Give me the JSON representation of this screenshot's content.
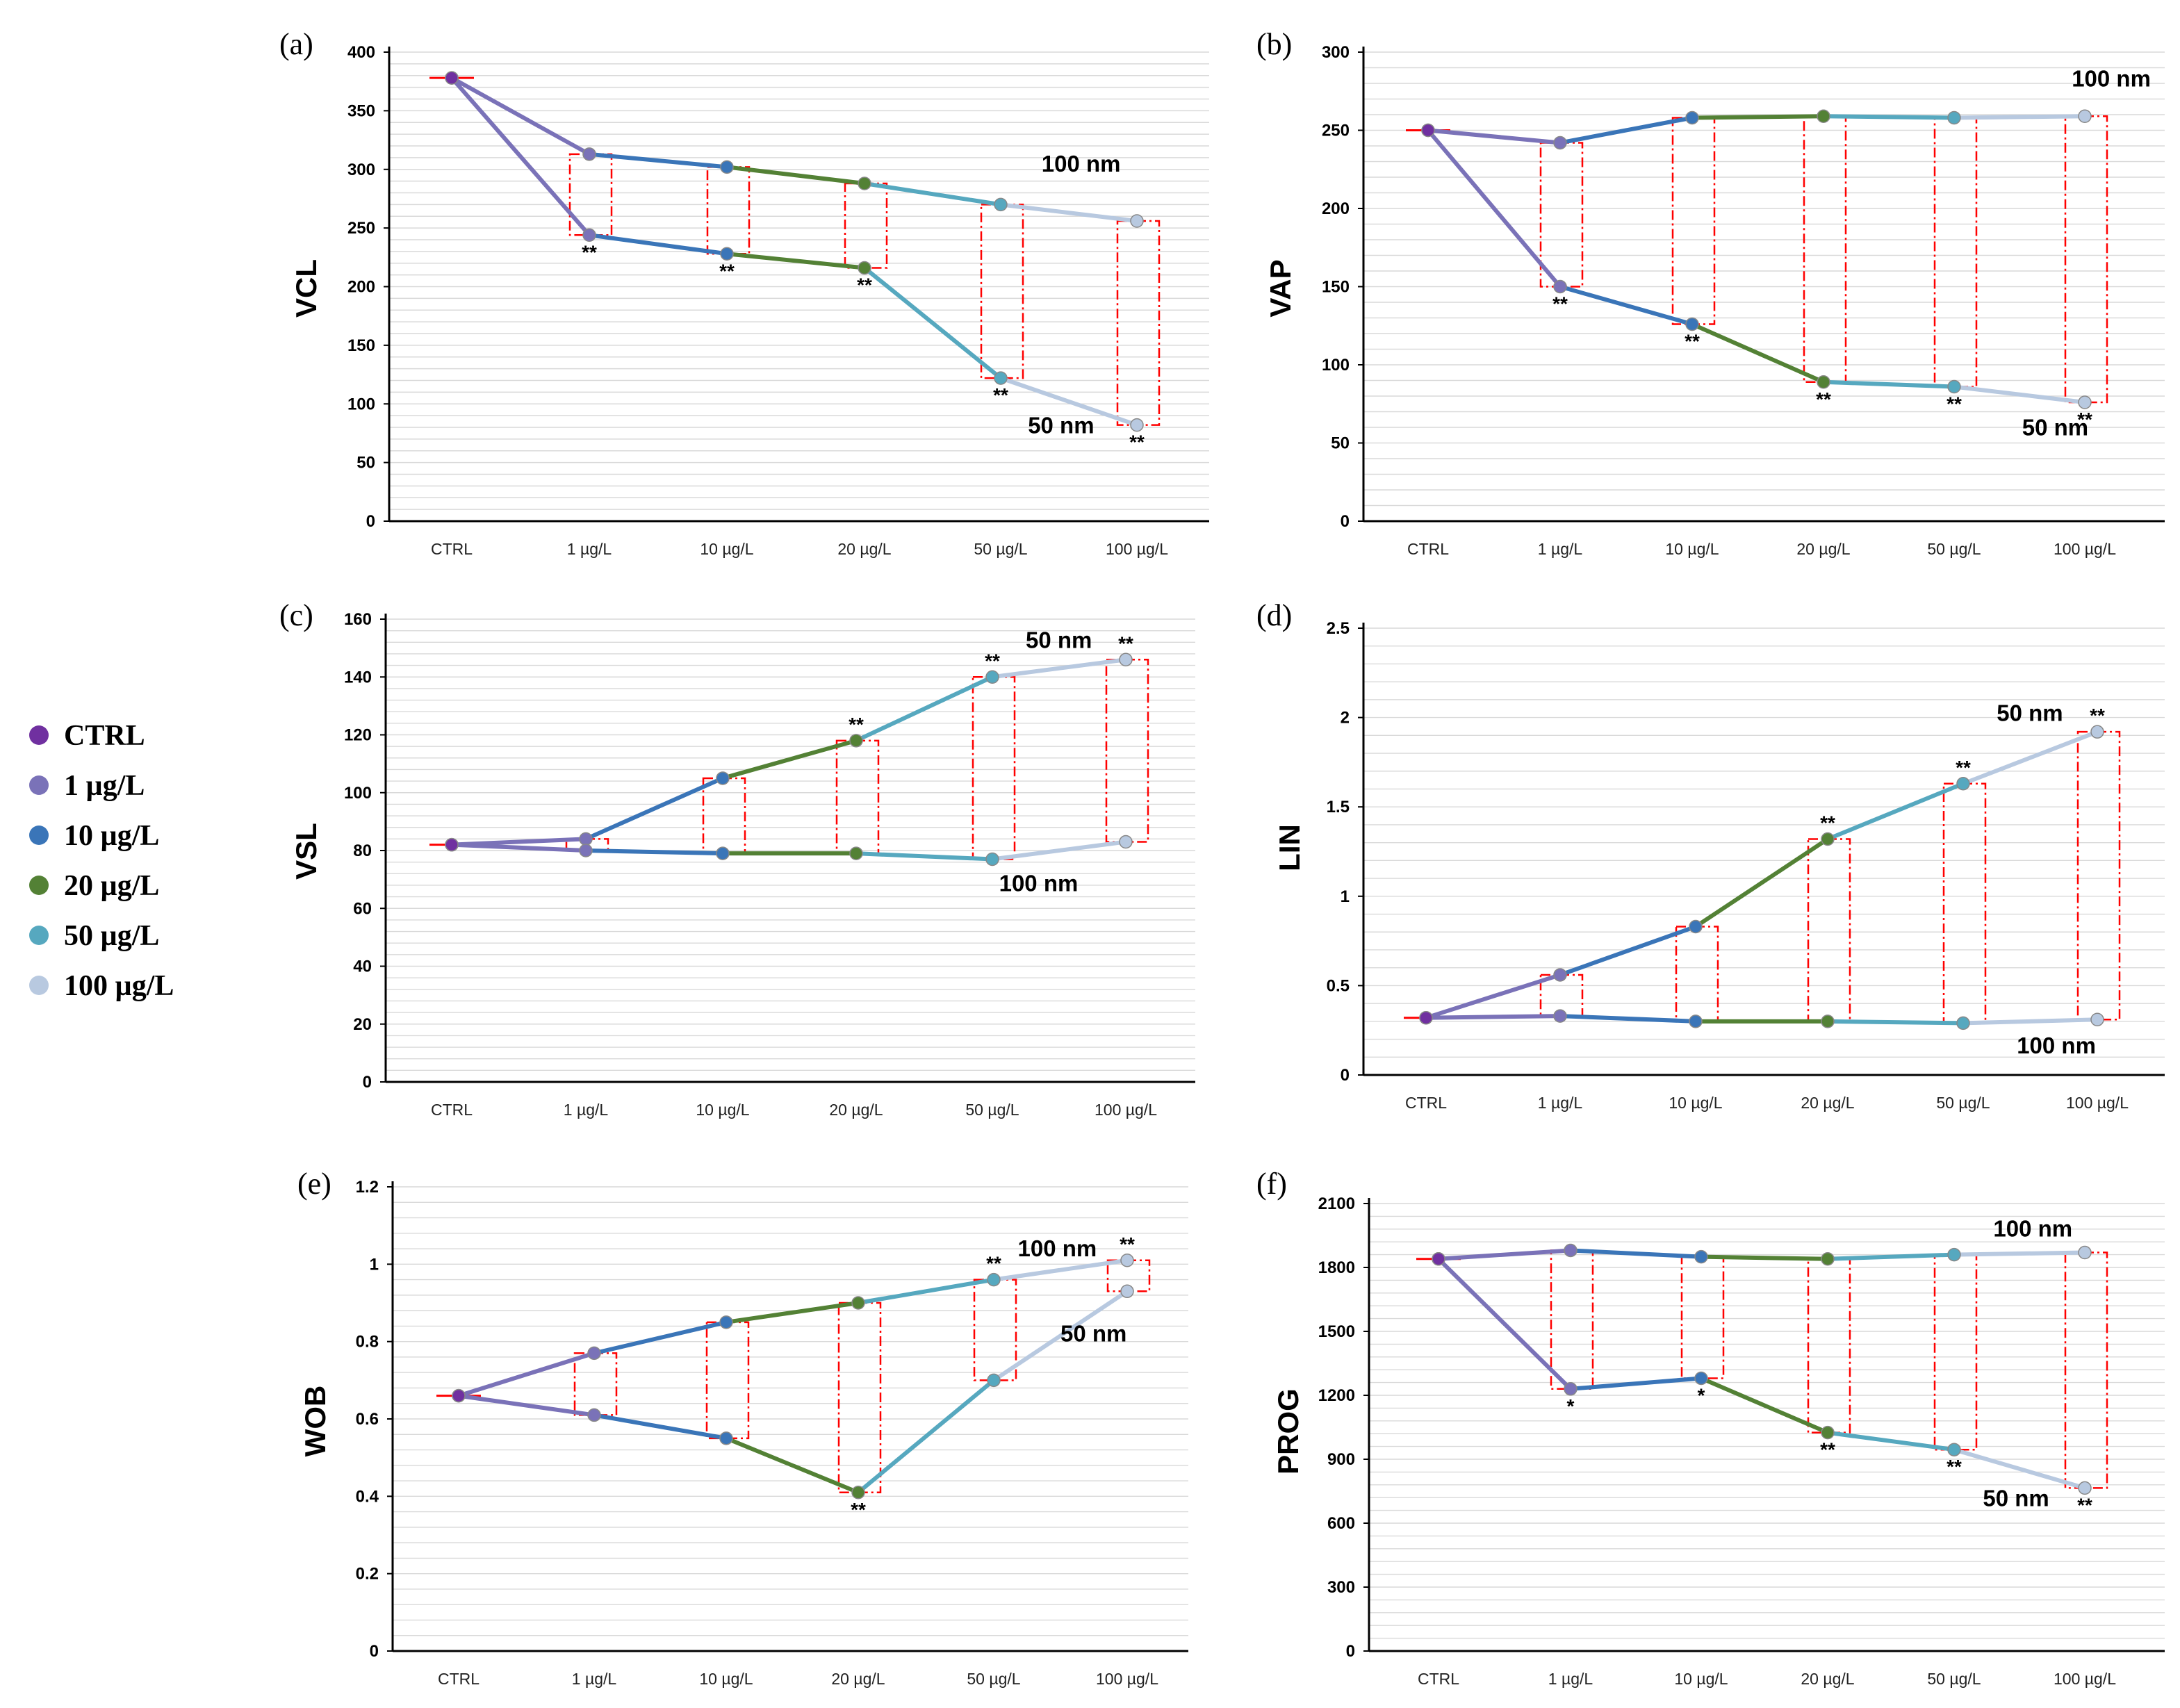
{
  "colors": {
    "CTRL": "#7030a0",
    "1 µg/L": "#7a72b8",
    "10 µg/L": "#3a75b8",
    "20 µg/L": "#538135",
    "50 µg/L": "#56a8bf",
    "100 µg/L": "#b8c9e0",
    "bracket": "#ff0000",
    "grid": "#d9d9d9"
  },
  "legend": [
    "CTRL",
    "1 µg/L",
    "10 µg/L",
    "20 µg/L",
    "50 µg/L",
    "100 µg/L"
  ],
  "chart_data": [
    {
      "panel": "(a)",
      "type": "line",
      "ylabel": "VCL",
      "ylim": [
        0,
        400
      ],
      "yticks": [
        0,
        50,
        100,
        150,
        200,
        250,
        300,
        350,
        400
      ],
      "categories": [
        "CTRL",
        "1 µg/L",
        "10 µg/L",
        "20 µg/L",
        "50 µg/L",
        "100 µg/L"
      ],
      "series": [
        {
          "name": "100 nm",
          "values": [
            378,
            313,
            302,
            288,
            270,
            256
          ]
        },
        {
          "name": "50 nm",
          "values": [
            378,
            244,
            228,
            216,
            122,
            82
          ]
        }
      ],
      "significance": [
        "",
        "**",
        "**",
        "**",
        "**",
        "**"
      ],
      "annotations": [
        {
          "text": "100 nm",
          "cat": 4.3,
          "value": 298
        },
        {
          "text": "50 nm",
          "cat": 4.2,
          "value": 75
        }
      ],
      "bracket_ends": [
        false,
        false,
        false,
        false,
        false,
        false
      ]
    },
    {
      "panel": "(b)",
      "type": "line",
      "ylabel": "VAP",
      "ylim": [
        0,
        300
      ],
      "yticks": [
        0,
        50,
        100,
        150,
        200,
        250,
        300
      ],
      "categories": [
        "CTRL",
        "1 µg/L",
        "10 µg/L",
        "20 µg/L",
        "50 µg/L",
        "100 µg/L"
      ],
      "series": [
        {
          "name": "100 nm",
          "values": [
            250,
            242,
            258,
            259,
            258,
            259
          ]
        },
        {
          "name": "50 nm",
          "values": [
            250,
            150,
            126,
            89,
            86,
            76
          ]
        }
      ],
      "significance": [
        "",
        "**",
        "**",
        "**",
        "**",
        "**"
      ],
      "annotations": [
        {
          "text": "100 nm",
          "cat": 4.9,
          "value": 278
        },
        {
          "text": "50 nm",
          "cat": 4.52,
          "value": 55
        }
      ],
      "bracket_ends": [
        false,
        false,
        false,
        false,
        false,
        false
      ]
    },
    {
      "panel": "(c)",
      "type": "line",
      "ylabel": "VSL",
      "ylim": [
        0,
        160
      ],
      "yticks": [
        0,
        20,
        40,
        60,
        80,
        100,
        120,
        140,
        160
      ],
      "categories": [
        "CTRL",
        "1 µg/L",
        "10 µg/L",
        "20 µg/L",
        "50 µg/L",
        "100 µg/L"
      ],
      "series": [
        {
          "name": "50 nm",
          "values": [
            82,
            84,
            105,
            118,
            140,
            146
          ]
        },
        {
          "name": "100 nm",
          "values": [
            82,
            80,
            79,
            79,
            77,
            83
          ]
        }
      ],
      "significance": [
        "",
        "",
        "",
        "**",
        "**",
        "**"
      ],
      "annotations": [
        {
          "text": "50 nm",
          "cat": 4.25,
          "value": 150
        },
        {
          "text": "100 nm",
          "cat": 4.05,
          "value": 66
        }
      ],
      "bracket_ends": [
        false,
        false,
        false,
        false,
        false,
        false
      ]
    },
    {
      "panel": "(d)",
      "type": "line",
      "ylabel": "LIN",
      "ylim": [
        0,
        2.5
      ],
      "yticks": [
        0,
        0.5,
        1,
        1.5,
        2,
        2.5
      ],
      "categories": [
        "CTRL",
        "1 µg/L",
        "10 µg/L",
        "20 µg/L",
        "50 µg/L",
        "100 µg/L"
      ],
      "series": [
        {
          "name": "50 nm",
          "values": [
            0.32,
            0.56,
            0.83,
            1.32,
            1.63,
            1.92
          ]
        },
        {
          "name": "100 nm",
          "values": [
            0.32,
            0.33,
            0.3,
            0.3,
            0.29,
            0.31
          ]
        }
      ],
      "significance": [
        "",
        "",
        "",
        "**",
        "**",
        "**"
      ],
      "annotations": [
        {
          "text": "50 nm",
          "cat": 4.25,
          "value": 1.98
        },
        {
          "text": "100 nm",
          "cat": 4.4,
          "value": 0.12
        }
      ],
      "bracket_ends": [
        false,
        false,
        false,
        false,
        false,
        false
      ]
    },
    {
      "panel": "(e)",
      "type": "line",
      "ylabel": "WOB",
      "ylim": [
        0,
        1.2
      ],
      "yticks": [
        0,
        0.2,
        0.4,
        0.6,
        0.8,
        1,
        1.2
      ],
      "categories": [
        "CTRL",
        "1 µg/L",
        "10 µg/L",
        "20 µg/L",
        "50 µg/L",
        "100 µg/L"
      ],
      "series": [
        {
          "name": "100 nm",
          "values": [
            0.66,
            0.77,
            0.85,
            0.9,
            0.96,
            1.01
          ]
        },
        {
          "name": "50 nm",
          "values": [
            0.66,
            0.61,
            0.55,
            0.41,
            0.7,
            0.93
          ]
        }
      ],
      "significance": [
        "",
        "",
        "",
        "**",
        "**",
        "**"
      ],
      "annotations": [
        {
          "text": "100 nm",
          "cat": 4.18,
          "value": 1.02
        },
        {
          "text": "50 nm",
          "cat": 4.5,
          "value": 0.8
        }
      ],
      "bracket_ends": [
        false,
        false,
        false,
        false,
        false,
        true
      ]
    },
    {
      "panel": "(f)",
      "type": "line",
      "ylabel": "PROG",
      "ylim": [
        0,
        2100
      ],
      "yticks": [
        0,
        300,
        600,
        900,
        1200,
        1500,
        1800,
        2100
      ],
      "categories": [
        "CTRL",
        "1 µg/L",
        "10 µg/L",
        "20 µg/L",
        "50 µg/L",
        "100 µg/L"
      ],
      "series": [
        {
          "name": "100 nm",
          "values": [
            1840,
            1880,
            1850,
            1840,
            1860,
            1870
          ]
        },
        {
          "name": "50 nm",
          "values": [
            1840,
            1230,
            1280,
            1025,
            945,
            765
          ]
        }
      ],
      "significance": [
        "",
        "*",
        "*",
        "**",
        "**",
        "**"
      ],
      "annotations": [
        {
          "text": "100 nm",
          "cat": 4.3,
          "value": 1945
        },
        {
          "text": "50 nm",
          "cat": 4.22,
          "value": 680
        }
      ],
      "bracket_ends": [
        false,
        false,
        false,
        false,
        false,
        false
      ]
    }
  ]
}
